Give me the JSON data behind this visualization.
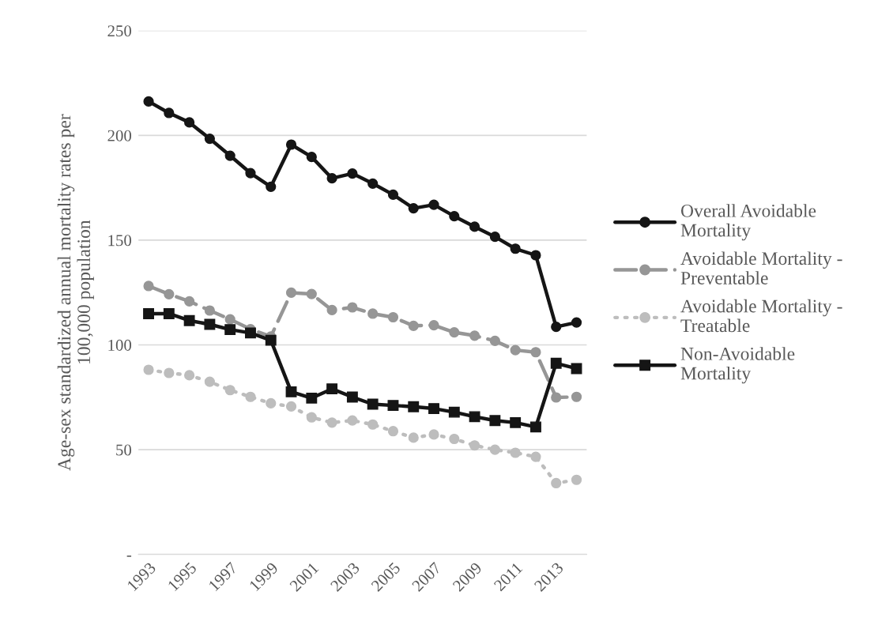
{
  "chart_data": {
    "type": "line",
    "ylabel": "Age-sex standardized annual mortality rates per 100,000 population",
    "categories": [
      "1993",
      null,
      "1995",
      null,
      "1997",
      null,
      "1999",
      null,
      "2001",
      null,
      "2003",
      null,
      "2005",
      null,
      "2007",
      null,
      "2009",
      null,
      "2011",
      null,
      "2013",
      null
    ],
    "ylim": [
      0,
      250
    ],
    "yticks": [
      {
        "value": 0,
        "label": "-"
      },
      50,
      100,
      150,
      200,
      250
    ],
    "grid": "y",
    "legend": "right",
    "series": [
      {
        "name": "Overall Avoidable Mortality",
        "color": "#151515",
        "line_style": "solid",
        "marker": "circle",
        "values": [
          216.2,
          210.7,
          206.2,
          198.4,
          190.3,
          182.0,
          175.5,
          195.6,
          189.7,
          179.5,
          181.8,
          177.0,
          171.7,
          165.2,
          166.9,
          161.4,
          156.4,
          151.6,
          145.9,
          142.8,
          108.6,
          110.7
        ]
      },
      {
        "name": "Avoidable Mortality - Preventable",
        "color": "#969696",
        "line_style": "dashed",
        "marker": "circle",
        "values": [
          128.1,
          124.2,
          120.8,
          116.4,
          112.2,
          107.5,
          104.0,
          124.9,
          124.3,
          116.6,
          117.9,
          114.9,
          113.2,
          109.1,
          109.4,
          106.0,
          104.4,
          101.9,
          97.5,
          96.5,
          74.9,
          75.2
        ]
      },
      {
        "name": "Avoidable Mortality - Treatable",
        "color": "#bdbdbd",
        "line_style": "dotted",
        "marker": "circle",
        "values": [
          88.1,
          86.6,
          85.5,
          82.4,
          78.4,
          75.2,
          72.1,
          70.6,
          65.4,
          62.9,
          63.9,
          62.0,
          58.8,
          55.7,
          57.2,
          55.1,
          52.0,
          50.0,
          48.5,
          46.6,
          34.0,
          35.6
        ]
      },
      {
        "name": "Non-Avoidable Mortality",
        "color": "#151515",
        "line_style": "solid",
        "marker": "square",
        "values": [
          114.9,
          114.9,
          111.6,
          109.8,
          107.3,
          105.7,
          102.2,
          77.6,
          74.6,
          79.0,
          75.1,
          71.7,
          71.1,
          70.5,
          69.6,
          67.9,
          65.7,
          63.9,
          62.9,
          60.8,
          91.2,
          88.7
        ]
      }
    ]
  }
}
